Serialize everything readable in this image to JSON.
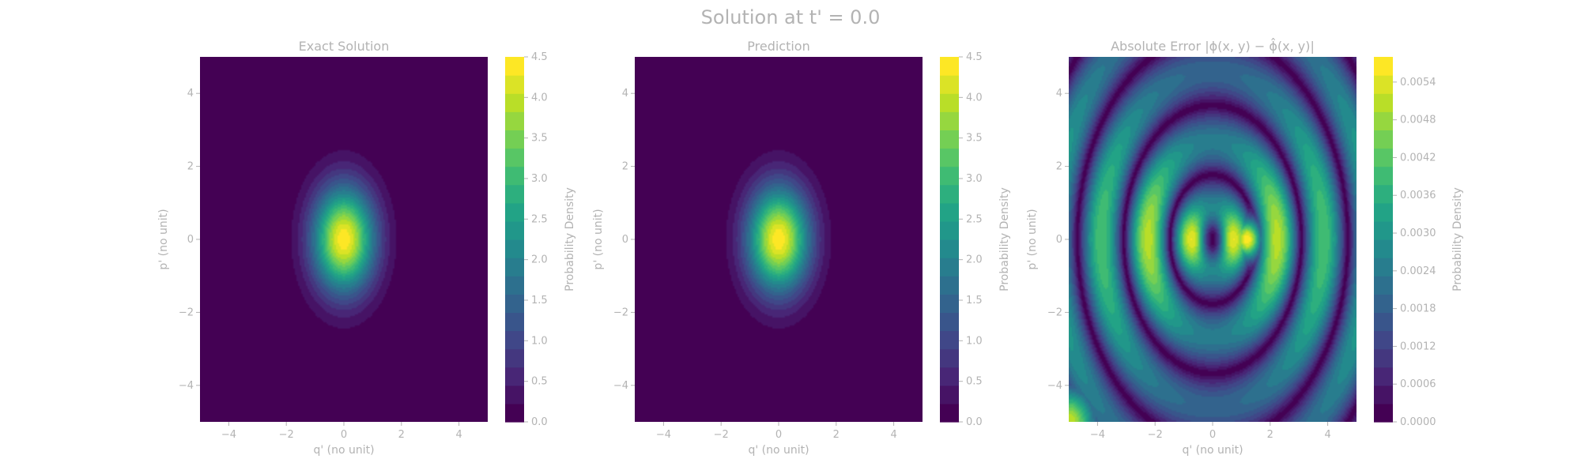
{
  "figure": {
    "suptitle": "Solution at t' = 0.0"
  },
  "chart_data": [
    {
      "type": "heatmap",
      "title": "Exact Solution",
      "xlabel": "q' (no unit)",
      "ylabel": "p' (no unit)",
      "xlim": [
        -5,
        5
      ],
      "ylim": [
        -5,
        5
      ],
      "xticks": [
        -4,
        -2,
        0,
        2,
        4
      ],
      "yticks": [
        -4,
        -2,
        0,
        2,
        4
      ],
      "xtick_labels": [
        "−4",
        "−2",
        "0",
        "2",
        "4"
      ],
      "ytick_labels": [
        "−4",
        "−2",
        "0",
        "2",
        "4"
      ],
      "field": {
        "kind": "gaussian",
        "peak": 4.45,
        "center": [
          0,
          0
        ],
        "sigma_q": 0.75,
        "sigma_p": 1.0
      },
      "colorbar": {
        "label": "Probability Density",
        "vmin": 0.0,
        "vmax": 4.5,
        "ticks": [
          0.0,
          0.5,
          1.0,
          1.5,
          2.0,
          2.5,
          3.0,
          3.5,
          4.0,
          4.5
        ],
        "tick_labels": [
          "0.0",
          "0.5",
          "1.0",
          "1.5",
          "2.0",
          "2.5",
          "3.0",
          "3.5",
          "4.0",
          "4.5"
        ]
      },
      "colormap": "viridis",
      "grid": false
    },
    {
      "type": "heatmap",
      "title": "Prediction",
      "xlabel": "q' (no unit)",
      "ylabel": "p' (no unit)",
      "xlim": [
        -5,
        5
      ],
      "ylim": [
        -5,
        5
      ],
      "xticks": [
        -4,
        -2,
        0,
        2,
        4
      ],
      "yticks": [
        -4,
        -2,
        0,
        2,
        4
      ],
      "xtick_labels": [
        "−4",
        "−2",
        "0",
        "2",
        "4"
      ],
      "ytick_labels": [
        "−4",
        "−2",
        "0",
        "2",
        "4"
      ],
      "field": {
        "kind": "gaussian",
        "peak": 4.45,
        "center": [
          0,
          0
        ],
        "sigma_q": 0.75,
        "sigma_p": 1.0
      },
      "colorbar": {
        "label": "Probability Density",
        "vmin": 0.0,
        "vmax": 4.5,
        "ticks": [
          0.0,
          0.5,
          1.0,
          1.5,
          2.0,
          2.5,
          3.0,
          3.5,
          4.0,
          4.5
        ],
        "tick_labels": [
          "0.0",
          "0.5",
          "1.0",
          "1.5",
          "2.0",
          "2.5",
          "3.0",
          "3.5",
          "4.0",
          "4.5"
        ]
      },
      "colormap": "viridis",
      "grid": false
    },
    {
      "type": "heatmap",
      "title": "Absolute Error |ϕ(x, y) − ϕ̂(x, y)|",
      "xlabel": "q' (no unit)",
      "ylabel": "p' (no unit)",
      "xlim": [
        -5,
        5
      ],
      "ylim": [
        -5,
        5
      ],
      "xticks": [
        -4,
        -2,
        0,
        2,
        4
      ],
      "yticks": [
        -4,
        -2,
        0,
        2,
        4
      ],
      "xtick_labels": [
        "−4",
        "−2",
        "0",
        "2",
        "4"
      ],
      "ytick_labels": [
        "−4",
        "−2",
        "0",
        "2",
        "4"
      ],
      "field": {
        "kind": "error-rings",
        "vmax_data": 0.0058
      },
      "colorbar": {
        "label": "Probability Density",
        "vmin": 0.0,
        "vmax": 0.0058,
        "ticks": [
          0.0,
          0.0006,
          0.0012,
          0.0018,
          0.0024,
          0.003,
          0.0036,
          0.0042,
          0.0048,
          0.0054
        ],
        "tick_labels": [
          "0.0000",
          "0.0006",
          "0.0012",
          "0.0018",
          "0.0024",
          "0.0030",
          "0.0036",
          "0.0042",
          "0.0048",
          "0.0054"
        ]
      },
      "colormap": "viridis",
      "grid": false
    }
  ]
}
